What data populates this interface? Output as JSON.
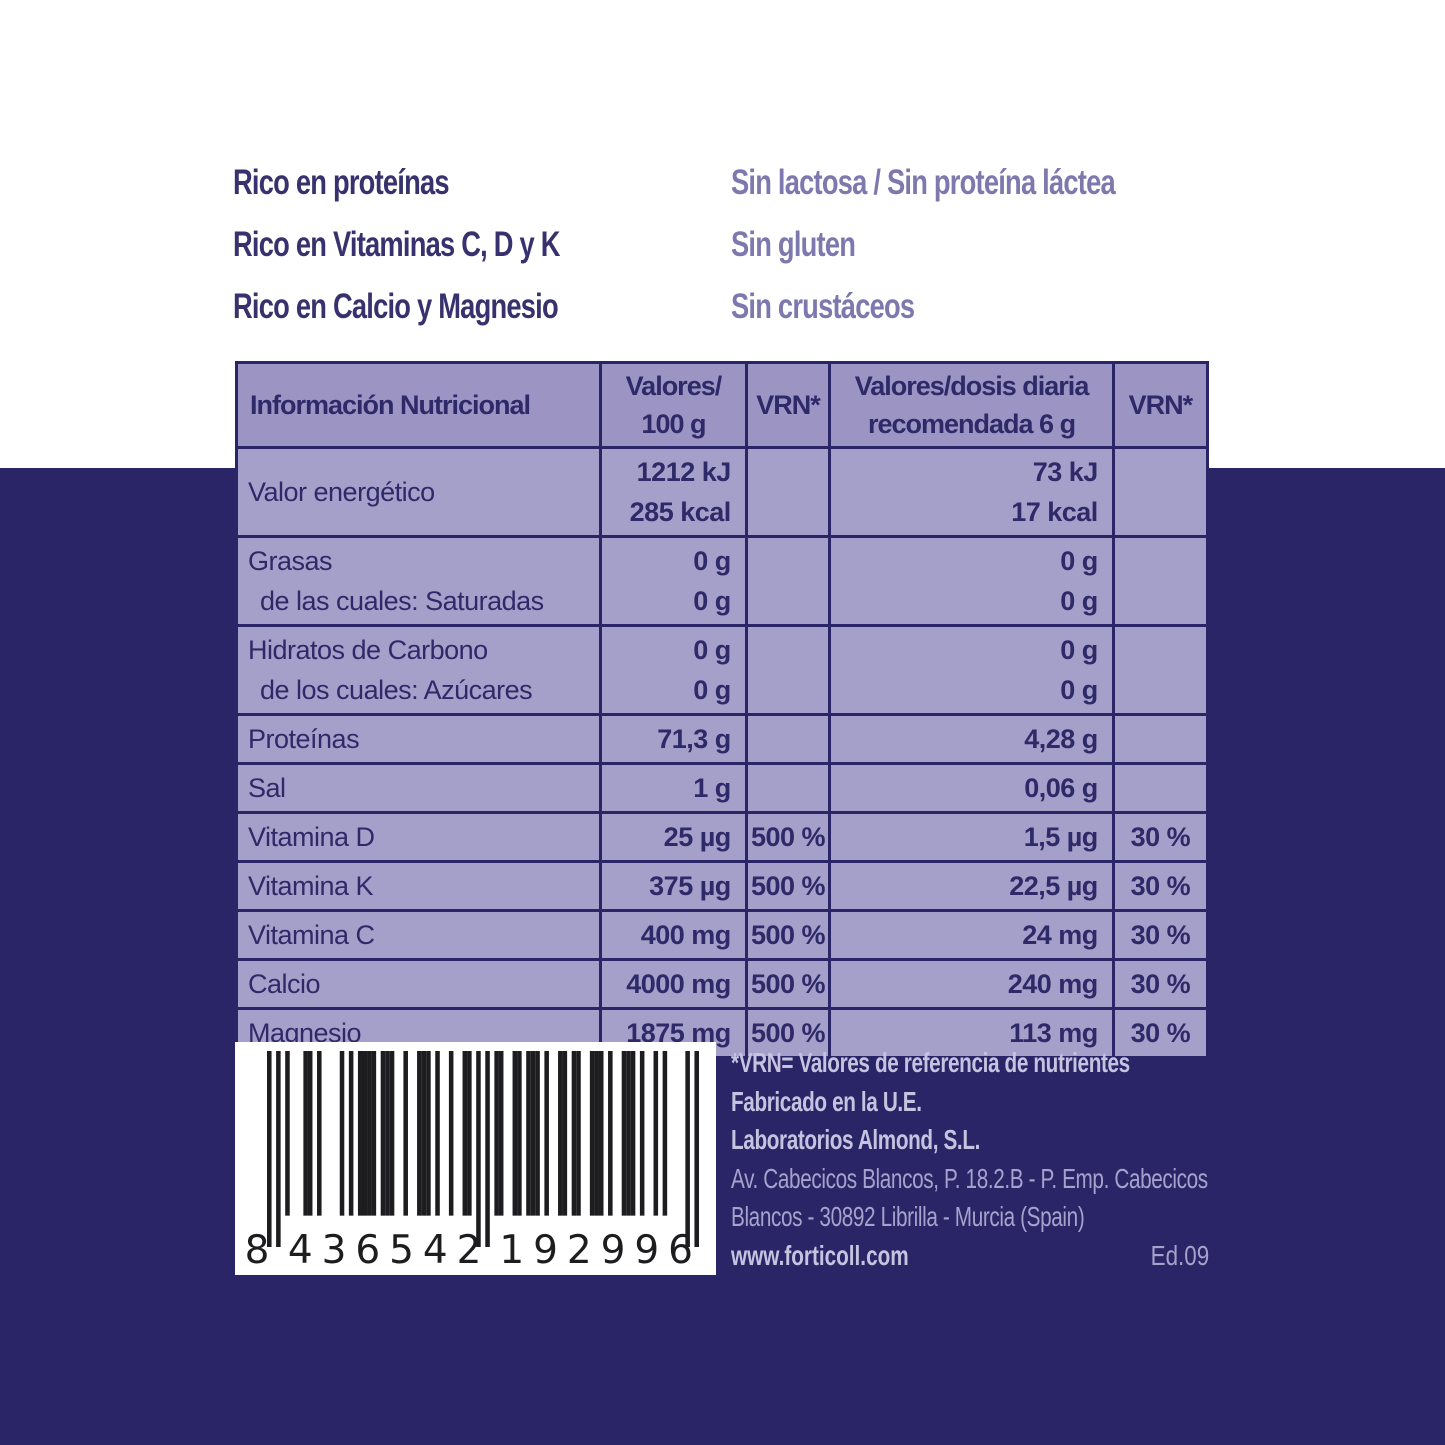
{
  "claims": {
    "left": [
      "Rico en proteínas",
      "Rico en Vitaminas C, D y K",
      "Rico en Calcio y Magnesio"
    ],
    "right": [
      "Sin lactosa / Sin proteína láctea",
      "Sin gluten",
      "Sin crustáceos"
    ]
  },
  "table": {
    "headers": [
      {
        "lines": [
          "Información Nutricional"
        ]
      },
      {
        "lines": [
          "Valores/",
          "100 g"
        ]
      },
      {
        "lines": [
          "VRN*"
        ]
      },
      {
        "lines": [
          "Valores/dosis diaria",
          "recomendada 6 g"
        ]
      },
      {
        "lines": [
          "VRN*"
        ]
      }
    ],
    "rows": [
      {
        "label": [
          "Valor energético"
        ],
        "v100": [
          "1212 kJ",
          "285 kcal"
        ],
        "vrn100": "",
        "vdose": [
          "73 kJ",
          "17 kcal"
        ],
        "vrndose": ""
      },
      {
        "label": [
          "Grasas",
          "de las cuales: Saturadas"
        ],
        "v100": [
          "0 g",
          "0 g"
        ],
        "vrn100": "",
        "vdose": [
          "0 g",
          "0 g"
        ],
        "vrndose": ""
      },
      {
        "label": [
          "Hidratos de Carbono",
          "de los cuales: Azúcares"
        ],
        "v100": [
          "0 g",
          "0 g"
        ],
        "vrn100": "",
        "vdose": [
          "0 g",
          "0 g"
        ],
        "vrndose": ""
      },
      {
        "label": [
          "Proteínas"
        ],
        "v100": [
          "71,3 g"
        ],
        "vrn100": "",
        "vdose": [
          "4,28 g"
        ],
        "vrndose": ""
      },
      {
        "label": [
          "Sal"
        ],
        "v100": [
          "1 g"
        ],
        "vrn100": "",
        "vdose": [
          "0,06 g"
        ],
        "vrndose": ""
      },
      {
        "label": [
          "Vitamina D"
        ],
        "v100": [
          "25 µg"
        ],
        "vrn100": "500 %",
        "vdose": [
          "1,5 µg"
        ],
        "vrndose": "30 %"
      },
      {
        "label": [
          "Vitamina K"
        ],
        "v100": [
          "375 µg"
        ],
        "vrn100": "500 %",
        "vdose": [
          "22,5 µg"
        ],
        "vrndose": "30 %"
      },
      {
        "label": [
          "Vitamina C"
        ],
        "v100": [
          "400 mg"
        ],
        "vrn100": "500 %",
        "vdose": [
          "24 mg"
        ],
        "vrndose": "30 %"
      },
      {
        "label": [
          "Calcio"
        ],
        "v100": [
          "4000 mg"
        ],
        "vrn100": "500 %",
        "vdose": [
          "240 mg"
        ],
        "vrndose": "30 %"
      },
      {
        "label": [
          "Magnesio"
        ],
        "v100": [
          "1875 mg"
        ],
        "vrn100": "500 %",
        "vdose": [
          "113 mg"
        ],
        "vrndose": "30 %"
      }
    ]
  },
  "barcode": {
    "number": "8436542192996",
    "display_groups": [
      "8",
      "436542",
      "192996"
    ]
  },
  "footer": {
    "vrn_note": "*VRN= Valores de referencia de nutrientes",
    "made_in": "Fabricado en la U.E.",
    "company": "Laboratorios Almond, S.L.",
    "address_line1": "Av. Cabecicos Blancos, P. 18.2.B - P. Emp. Cabecicos",
    "address_line2": "Blancos - 30892 Librilla - Murcia (Spain)",
    "website": "www.forticoll.com",
    "edition": "Ed.09"
  },
  "colors": {
    "navy": "#2a2566",
    "white": "#ffffff",
    "table_header_bg": "#9c95c3",
    "table_body_bg": "#a5a0c9",
    "table_text": "#2e2968",
    "claims_dark": "#37326e",
    "claims_light": "#7d78ae",
    "footer_bold": "#c6c3e0",
    "footer_regular": "#a6a2cc",
    "barcode_ink": "#1d1d1f"
  }
}
